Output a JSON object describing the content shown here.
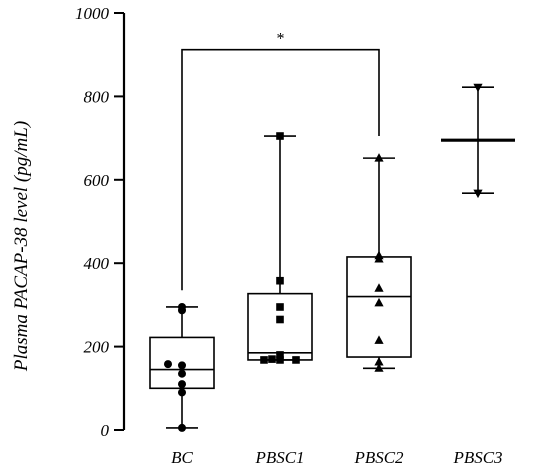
{
  "chart_data": {
    "type": "box",
    "ylabel": "Plasma PACAP-38 level (pg/mL)",
    "xlabel": "",
    "ylim": [
      0,
      1000
    ],
    "yticks": [
      0,
      200,
      400,
      600,
      800,
      1000
    ],
    "categories": [
      "BC",
      "PBSC1",
      "PBSC2",
      "PBSC3"
    ],
    "groups": [
      {
        "name": "BC",
        "marker": "circle",
        "whisker_min": 5,
        "q1": 100,
        "median": 145,
        "q3": 222,
        "whisker_max": 295,
        "points": [
          5,
          90,
          110,
          135,
          155,
          158,
          287,
          295
        ]
      },
      {
        "name": "PBSC1",
        "marker": "square",
        "whisker_min": 168,
        "q1": 168,
        "median": 185,
        "q3": 327,
        "whisker_max": 705,
        "points": [
          168,
          168,
          168,
          170,
          180,
          265,
          295,
          358,
          705
        ]
      },
      {
        "name": "PBSC2",
        "marker": "triangle-up",
        "whisker_min": 148,
        "q1": 175,
        "median": 320,
        "q3": 415,
        "whisker_max": 652,
        "points": [
          148,
          163,
          215,
          305,
          340,
          410,
          418,
          652
        ]
      },
      {
        "name": "PBSC3",
        "marker": "triangle-down",
        "whisker_min": 568,
        "median": 695,
        "whisker_max": 822,
        "points": [
          568,
          822
        ]
      }
    ],
    "significance": {
      "from": "BC",
      "to": "PBSC2",
      "label": "*",
      "y": 912
    }
  }
}
